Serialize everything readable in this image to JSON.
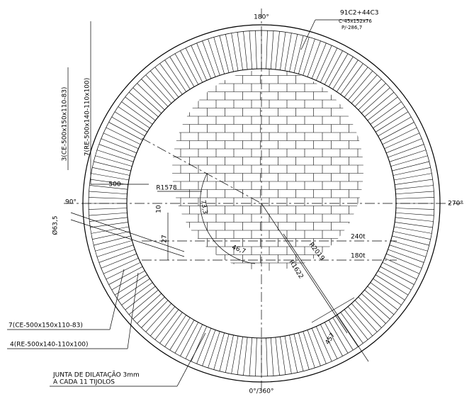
{
  "drawing": {
    "angles": {
      "top": "180°",
      "left": "90°",
      "right": "270°",
      "bottom": "0°/360°"
    },
    "brick_spec": {
      "count": "91C2+44C3",
      "size": "C-45x152x76",
      "weight": "P/-286,7"
    },
    "labels": {
      "re_top": "7(RE-500x140-110x100)",
      "ce_top": "3(CE-500x150x110-83)",
      "ce_bottom": "7(CE-500x150x110-83)",
      "re_bottom": "4(RE-500x140-110x100)",
      "joint_line1": "JUNTA DE DILATAÇÃO 3mm",
      "joint_line2": "A CADA 11 TIJOLOS"
    },
    "dimensions": {
      "width": "500",
      "r_small": "R1578",
      "angle1": "73,3",
      "angle2": "46,7",
      "offset1": "10",
      "offset2": "27",
      "diameter": "Ø63,5",
      "level1": "240t",
      "level2": "180t",
      "r_outer": "R2019",
      "r_inner": "R1622",
      "thickness": "457"
    }
  }
}
